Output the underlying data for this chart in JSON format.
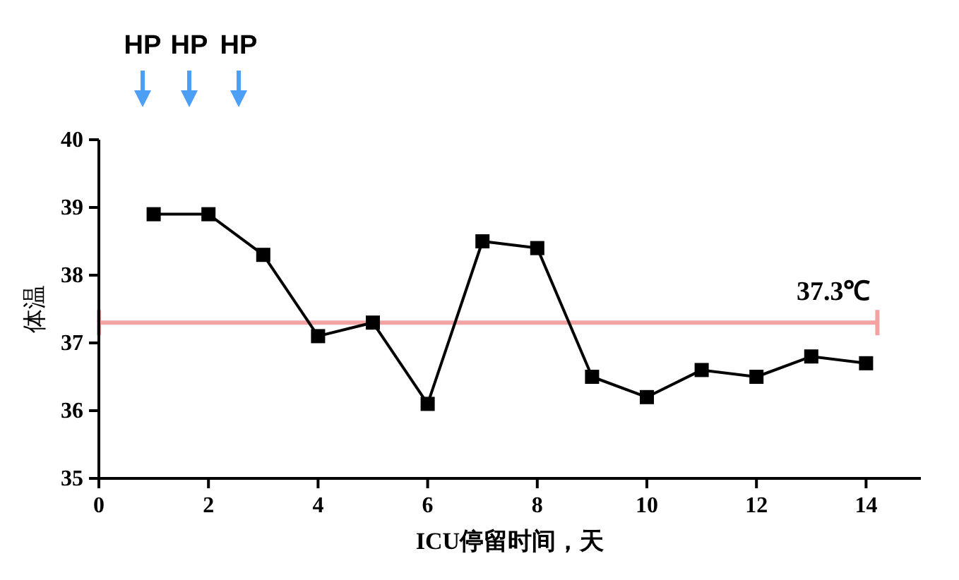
{
  "chart_data": {
    "type": "line",
    "xlabel": "ICU停留时间，天",
    "ylabel": "体温",
    "x": [
      1,
      2,
      3,
      4,
      5,
      6,
      7,
      8,
      9,
      10,
      11,
      12,
      13,
      14
    ],
    "series": [
      {
        "color": "#000000",
        "values": [
          38.9,
          38.9,
          38.3,
          37.1,
          37.3,
          36.1,
          38.5,
          38.4,
          36.5,
          36.2,
          36.6,
          36.5,
          36.8,
          36.7
        ]
      }
    ],
    "marker": "square",
    "line_style": "solid",
    "xlim": [
      0,
      15
    ],
    "xticks": [
      0,
      2,
      4,
      6,
      8,
      10,
      12,
      14
    ],
    "ylim": [
      35,
      40
    ],
    "yticks": [
      35,
      36,
      37,
      38,
      39,
      40
    ],
    "ref_lines": [
      {
        "axis": "y",
        "value": 37.3,
        "label": "37.3℃",
        "color": "#f4a3a3"
      }
    ],
    "annotations": [
      "HP",
      "HP",
      "HP"
    ]
  }
}
